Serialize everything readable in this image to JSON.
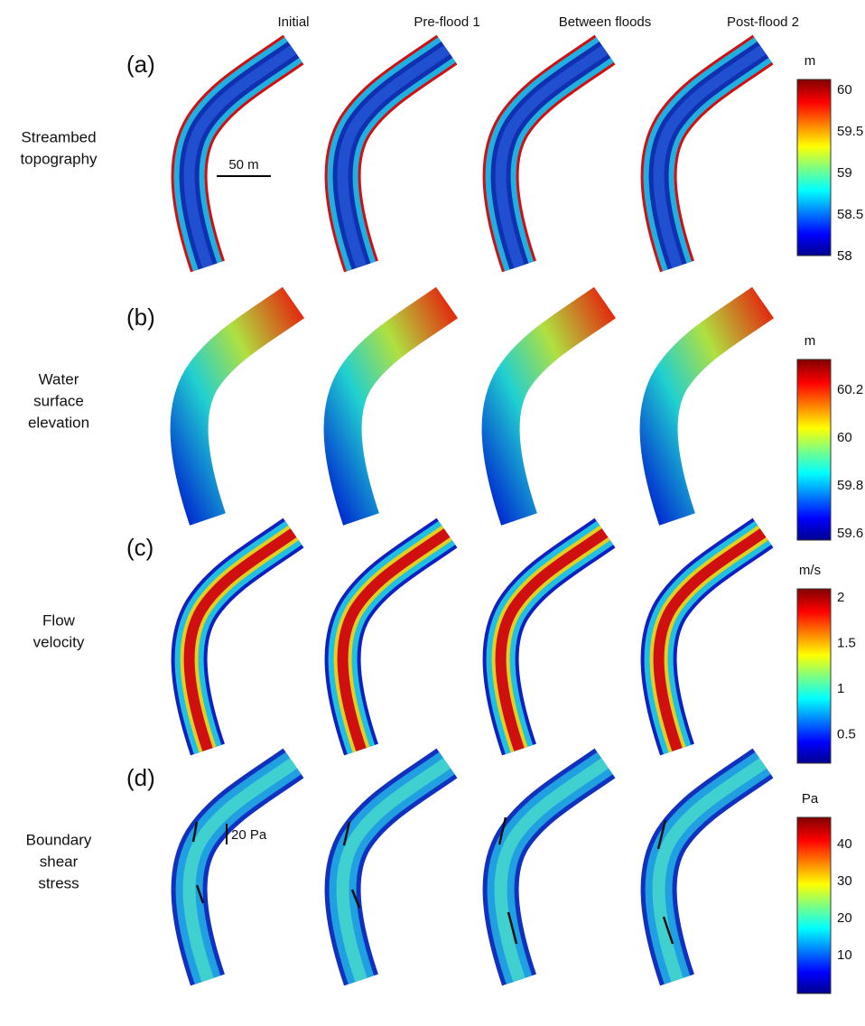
{
  "columns": [
    "Initial",
    "Pre-flood 1",
    "Between floods",
    "Post-flood 2"
  ],
  "rows": [
    {
      "letter": "(a)",
      "label": [
        "Streambed",
        "topography"
      ],
      "unit": "m",
      "ticks": [
        60,
        59.5,
        59,
        58.5,
        58
      ]
    },
    {
      "letter": "(b)",
      "label": [
        "Water",
        "surface",
        "elevation"
      ],
      "unit": "m",
      "ticks": [
        60.2,
        60,
        59.8,
        59.6
      ]
    },
    {
      "letter": "(c)",
      "label": [
        "Flow",
        "velocity"
      ],
      "unit": "m/s",
      "ticks": [
        2,
        1.5,
        1,
        0.5
      ]
    },
    {
      "letter": "(d)",
      "label": [
        "Boundary",
        "shear",
        "stress"
      ],
      "unit": "Pa",
      "ticks": [
        40,
        30,
        20,
        10
      ]
    }
  ],
  "scale_bars": {
    "distance": "50 m",
    "stress": "20 Pa"
  }
}
